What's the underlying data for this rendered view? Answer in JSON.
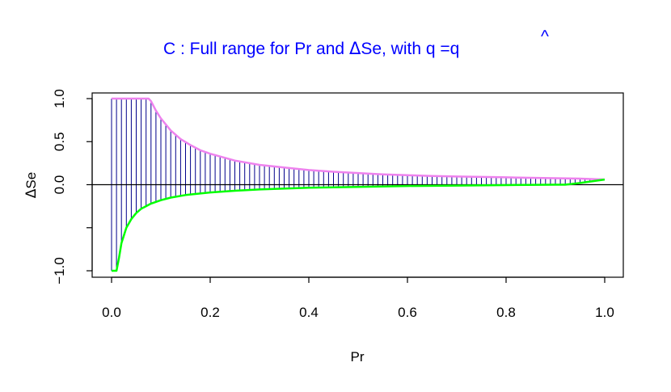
{
  "chart_data": {
    "type": "line",
    "title_prefix": "C : Full range for Pr and ",
    "title_delta": "Δ",
    "title_after_delta": "Se,  with q =",
    "title_qhat": "q",
    "title_hat": "^",
    "xlabel": "Pr",
    "ylabel_delta": "Δ",
    "ylabel_rest": "Se",
    "xlim": [
      0,
      1
    ],
    "ylim": [
      -1.05,
      1.05
    ],
    "x_ticks": [
      0.0,
      0.2,
      0.4,
      0.6,
      0.8,
      1.0
    ],
    "x_tick_labels": [
      "0.0",
      "0.2",
      "0.4",
      "0.6",
      "0.8",
      "1.0"
    ],
    "y_ticks": [
      -1.0,
      -0.5,
      0.0,
      0.5,
      1.0
    ],
    "y_tick_labels": [
      "−1.0",
      "",
      "0.0",
      "0.5",
      "1.0"
    ],
    "hline_y": 0,
    "upper_curve": {
      "color": "#ee82ee",
      "x": [
        0.0,
        0.01,
        0.02,
        0.03,
        0.04,
        0.05,
        0.06,
        0.07,
        0.075,
        0.08,
        0.09,
        0.1,
        0.12,
        0.14,
        0.16,
        0.18,
        0.2,
        0.25,
        0.3,
        0.35,
        0.4,
        0.45,
        0.5,
        0.55,
        0.6,
        0.65,
        0.7,
        0.75,
        0.8,
        0.85,
        0.9,
        0.95,
        1.0
      ],
      "y": [
        1.0,
        1.0,
        1.0,
        1.0,
        1.0,
        1.0,
        1.0,
        1.0,
        1.0,
        0.97,
        0.86,
        0.77,
        0.63,
        0.53,
        0.46,
        0.4,
        0.36,
        0.28,
        0.23,
        0.2,
        0.17,
        0.15,
        0.135,
        0.12,
        0.11,
        0.1,
        0.095,
        0.09,
        0.085,
        0.08,
        0.075,
        0.07,
        0.06
      ]
    },
    "lower_curve": {
      "color": "#00ff00",
      "x": [
        0.0,
        0.01,
        0.015,
        0.02,
        0.03,
        0.04,
        0.05,
        0.06,
        0.07,
        0.08,
        0.1,
        0.12,
        0.15,
        0.2,
        0.25,
        0.3,
        0.4,
        0.5,
        0.6,
        0.7,
        0.8,
        0.9,
        0.92,
        0.95,
        1.0
      ],
      "y": [
        -1.0,
        -1.0,
        -0.85,
        -0.68,
        -0.5,
        -0.4,
        -0.33,
        -0.28,
        -0.25,
        -0.22,
        -0.18,
        -0.15,
        -0.12,
        -0.09,
        -0.07,
        -0.055,
        -0.035,
        -0.025,
        -0.015,
        -0.01,
        -0.005,
        0.0,
        0.0,
        0.02,
        0.06
      ]
    },
    "segments": {
      "color": "#00008b",
      "x_start": 0.0,
      "x_step": 0.01,
      "count": 101
    }
  }
}
